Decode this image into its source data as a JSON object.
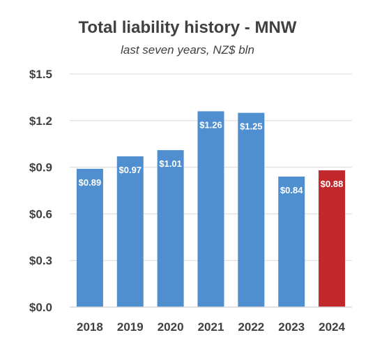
{
  "chart_data": {
    "type": "bar",
    "title": "Total liability history - MNW",
    "subtitle": "last seven years, NZ$ bln",
    "xlabel": "",
    "ylabel": "",
    "categories": [
      "2018",
      "2019",
      "2020",
      "2021",
      "2022",
      "2023",
      "2024"
    ],
    "values": [
      0.89,
      0.97,
      1.01,
      1.26,
      1.25,
      0.84,
      0.88
    ],
    "data_labels": [
      "$0.89",
      "$0.97",
      "$1.01",
      "$1.26",
      "$1.25",
      "$0.84",
      "$0.88"
    ],
    "ylim": [
      0,
      1.5
    ],
    "yticks": [
      0,
      0.3,
      0.6,
      0.9,
      1.2,
      1.5
    ],
    "ytick_labels": [
      "$0.0",
      "$0.3",
      "$0.6",
      "$0.9",
      "$1.2",
      "$1.5"
    ],
    "grid": true,
    "colors": {
      "default": "#4f8fd0",
      "highlight": "#c0282b",
      "grid": "#d9d9d9",
      "text": "#404040"
    },
    "highlight_index": 6
  }
}
